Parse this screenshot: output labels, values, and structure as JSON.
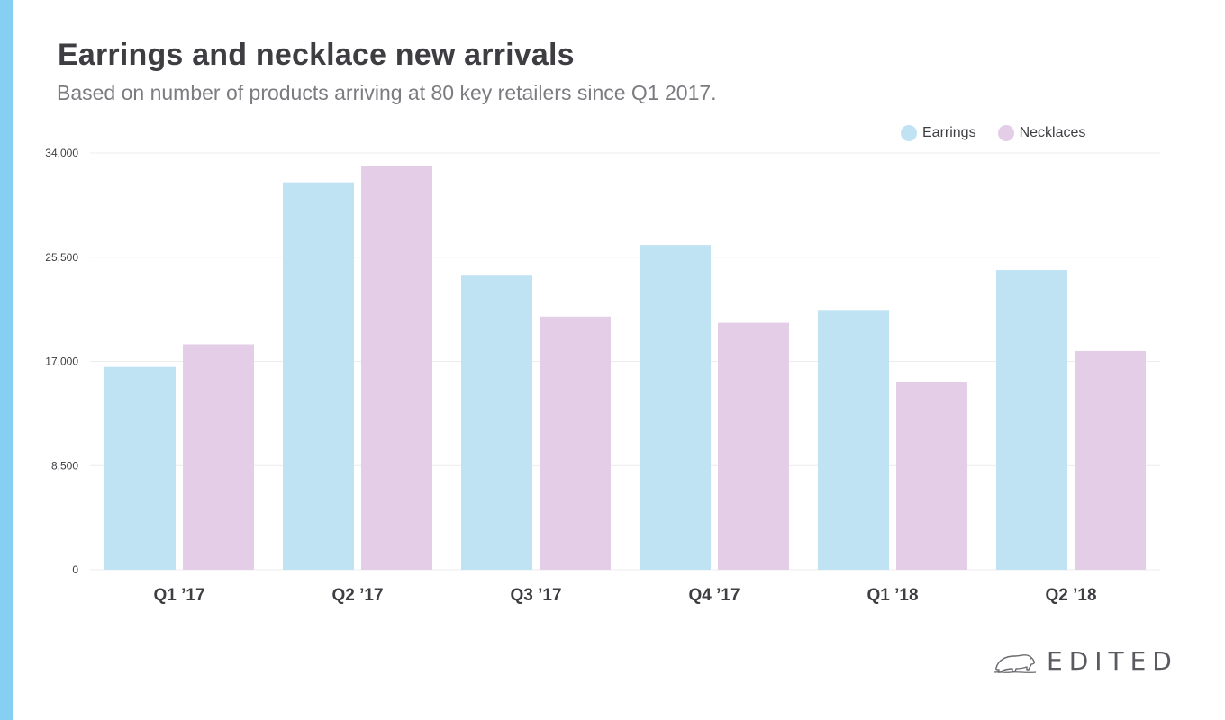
{
  "header": {
    "title": "Earrings and necklace new arrivals",
    "subtitle": "Based on number of products arriving at 80 key retailers since Q1 2017."
  },
  "brand": {
    "name": "EDITED",
    "logo_icon": "polar-bear-icon",
    "accent_color": "#86cff2"
  },
  "chart_data": {
    "type": "bar",
    "title": "Earrings and necklace new arrivals",
    "subtitle": "Based on number of products arriving at 80 key retailers since Q1 2017.",
    "categories": [
      "Q1 ’17",
      "Q2 ’17",
      "Q3 ’17",
      "Q4 ’17",
      "Q1 ’18",
      "Q2 ’18"
    ],
    "series": [
      {
        "name": "Earrings",
        "color": "#bfe3f3",
        "values": [
          16550,
          31600,
          24000,
          26500,
          21200,
          24450
        ]
      },
      {
        "name": "Necklaces",
        "color": "#e3cde7",
        "values": [
          18400,
          32900,
          20650,
          20150,
          15350,
          17850
        ]
      }
    ],
    "ylim": [
      0,
      34000
    ],
    "yticks": [
      0,
      8500,
      17000,
      25500,
      34000
    ],
    "ytick_labels": [
      "0",
      "8,500",
      "17,000",
      "25,500",
      "34,000"
    ],
    "xlabel": "",
    "ylabel": "",
    "grid": true,
    "legend_position": "top-right"
  }
}
